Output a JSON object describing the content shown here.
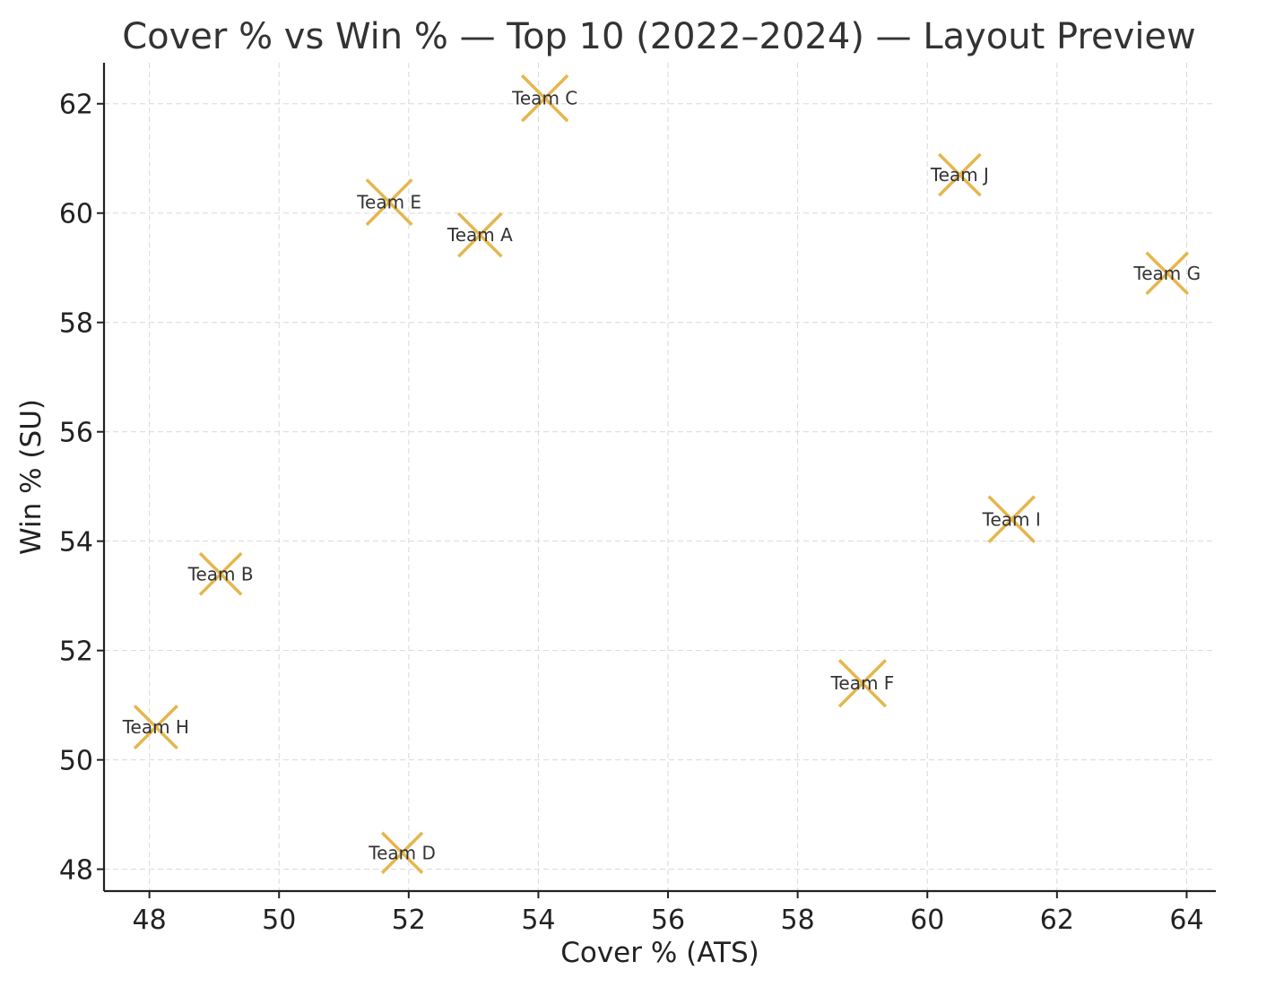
{
  "chart_data": {
    "type": "scatter",
    "title": "Cover % vs Win % — Top 10 (2022–2024) — Layout Preview",
    "xlabel": "Cover % (ATS)",
    "ylabel": "Win % (SU)",
    "xlim": [
      47.3,
      64.45
    ],
    "ylim": [
      47.6,
      62.75
    ],
    "xticks": [
      48,
      50,
      52,
      54,
      56,
      58,
      60,
      62,
      64
    ],
    "yticks": [
      48,
      50,
      52,
      54,
      56,
      58,
      60,
      62
    ],
    "grid": true,
    "marker": "x",
    "marker_color": "#E6B64C",
    "points": [
      {
        "label": "Team A",
        "x": 53.1,
        "y": 59.6,
        "size": 0.72
      },
      {
        "label": "Team B",
        "x": 49.1,
        "y": 53.4,
        "size": 0.65
      },
      {
        "label": "Team C",
        "x": 54.1,
        "y": 62.1,
        "size": 0.82
      },
      {
        "label": "Team D",
        "x": 51.9,
        "y": 48.3,
        "size": 0.6
      },
      {
        "label": "Team E",
        "x": 51.7,
        "y": 60.2,
        "size": 0.8
      },
      {
        "label": "Team F",
        "x": 59.0,
        "y": 51.4,
        "size": 0.85
      },
      {
        "label": "Team G",
        "x": 63.7,
        "y": 58.9,
        "size": 0.65
      },
      {
        "label": "Team H",
        "x": 48.1,
        "y": 50.6,
        "size": 0.7
      },
      {
        "label": "Team I",
        "x": 61.3,
        "y": 54.4,
        "size": 0.82
      },
      {
        "label": "Team J",
        "x": 60.5,
        "y": 60.7,
        "size": 0.65
      }
    ]
  }
}
